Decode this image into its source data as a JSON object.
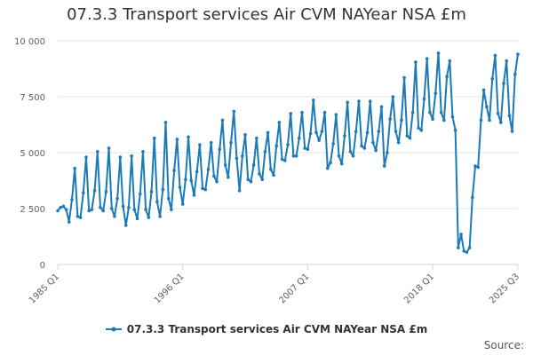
{
  "title": "07.3.3 Transport services Air CVM NAYear NSA £m",
  "source_label": "Source:",
  "chart_data": {
    "type": "line",
    "title": "07.3.3 Transport services Air CVM NAYear NSA £m",
    "xlabel": "",
    "ylabel": "",
    "ylim": [
      0,
      10000
    ],
    "yticks": [
      0,
      2500,
      5000,
      7500,
      10000
    ],
    "ytick_labels": [
      "0",
      "2 500",
      "5 000",
      "7 500",
      "10 000"
    ],
    "xtick_labels": [
      "1985 Q1",
      "1996 Q1",
      "2007 Q1",
      "2018 Q1",
      "2025 Q3"
    ],
    "xtick_index": [
      0,
      44,
      88,
      132,
      162
    ],
    "grid": true,
    "legend_position": "bottom",
    "color": "#1b7bb8",
    "series": [
      {
        "name": "07.3.3 Transport services Air CVM NAYear NSA £m",
        "x": [
          "1985 Q1",
          "1985 Q2",
          "1985 Q3",
          "1985 Q4",
          "1986 Q1",
          "1986 Q2",
          "1986 Q3",
          "1986 Q4",
          "1987 Q1",
          "1987 Q2",
          "1987 Q3",
          "1987 Q4",
          "1988 Q1",
          "1988 Q2",
          "1988 Q3",
          "1988 Q4",
          "1989 Q1",
          "1989 Q2",
          "1989 Q3",
          "1989 Q4",
          "1990 Q1",
          "1990 Q2",
          "1990 Q3",
          "1990 Q4",
          "1991 Q1",
          "1991 Q2",
          "1991 Q3",
          "1991 Q4",
          "1992 Q1",
          "1992 Q2",
          "1992 Q3",
          "1992 Q4",
          "1993 Q1",
          "1993 Q2",
          "1993 Q3",
          "1993 Q4",
          "1994 Q1",
          "1994 Q2",
          "1994 Q3",
          "1994 Q4",
          "1995 Q1",
          "1995 Q2",
          "1995 Q3",
          "1995 Q4",
          "1996 Q1",
          "1996 Q2",
          "1996 Q3",
          "1996 Q4",
          "1997 Q1",
          "1997 Q2",
          "1997 Q3",
          "1997 Q4",
          "1998 Q1",
          "1998 Q2",
          "1998 Q3",
          "1998 Q4",
          "1999 Q1",
          "1999 Q2",
          "1999 Q3",
          "1999 Q4",
          "2000 Q1",
          "2000 Q2",
          "2000 Q3",
          "2000 Q4",
          "2001 Q1",
          "2001 Q2",
          "2001 Q3",
          "2001 Q4",
          "2002 Q1",
          "2002 Q2",
          "2002 Q3",
          "2002 Q4",
          "2003 Q1",
          "2003 Q2",
          "2003 Q3",
          "2003 Q4",
          "2004 Q1",
          "2004 Q2",
          "2004 Q3",
          "2004 Q4",
          "2005 Q1",
          "2005 Q2",
          "2005 Q3",
          "2005 Q4",
          "2006 Q1",
          "2006 Q2",
          "2006 Q3",
          "2006 Q4",
          "2007 Q1",
          "2007 Q2",
          "2007 Q3",
          "2007 Q4",
          "2008 Q1",
          "2008 Q2",
          "2008 Q3",
          "2008 Q4",
          "2009 Q1",
          "2009 Q2",
          "2009 Q3",
          "2009 Q4",
          "2010 Q1",
          "2010 Q2",
          "2010 Q3",
          "2010 Q4",
          "2011 Q1",
          "2011 Q2",
          "2011 Q3",
          "2011 Q4",
          "2012 Q1",
          "2012 Q2",
          "2012 Q3",
          "2012 Q4",
          "2013 Q1",
          "2013 Q2",
          "2013 Q3",
          "2013 Q4",
          "2014 Q1",
          "2014 Q2",
          "2014 Q3",
          "2014 Q4",
          "2015 Q1",
          "2015 Q2",
          "2015 Q3",
          "2015 Q4",
          "2016 Q1",
          "2016 Q2",
          "2016 Q3",
          "2016 Q4",
          "2017 Q1",
          "2017 Q2",
          "2017 Q3",
          "2017 Q4",
          "2018 Q1",
          "2018 Q2",
          "2018 Q3",
          "2018 Q4",
          "2019 Q1",
          "2019 Q2",
          "2019 Q3",
          "2019 Q4",
          "2020 Q1",
          "2020 Q2",
          "2020 Q3",
          "2020 Q4",
          "2021 Q1",
          "2021 Q2",
          "2021 Q3",
          "2021 Q4",
          "2022 Q1",
          "2022 Q2",
          "2022 Q3",
          "2022 Q4",
          "2023 Q1",
          "2023 Q2",
          "2023 Q3",
          "2023 Q4",
          "2024 Q1",
          "2024 Q2",
          "2024 Q3",
          "2024 Q4",
          "2025 Q1",
          "2025 Q2",
          "2025 Q3"
        ],
        "values": [
          2400,
          2550,
          2600,
          2450,
          1900,
          2900,
          4300,
          2150,
          2100,
          3200,
          4800,
          2400,
          2450,
          3300,
          5050,
          2550,
          2400,
          3250,
          5200,
          2500,
          2150,
          2950,
          4800,
          2600,
          1750,
          2550,
          4850,
          2450,
          2050,
          3150,
          5050,
          2450,
          2100,
          3250,
          5650,
          2800,
          2150,
          3350,
          6350,
          2950,
          2450,
          4200,
          5600,
          3450,
          2700,
          3800,
          5700,
          3750,
          3100,
          4150,
          5350,
          3400,
          3350,
          4250,
          5450,
          3950,
          3700,
          5150,
          6450,
          4450,
          3900,
          5450,
          6850,
          4750,
          3300,
          4850,
          5800,
          3800,
          3700,
          4450,
          5650,
          4050,
          3800,
          5050,
          5900,
          4250,
          4000,
          5300,
          6350,
          4700,
          4650,
          5350,
          6750,
          4850,
          4850,
          5650,
          6800,
          5200,
          5150,
          5850,
          7350,
          5900,
          5550,
          5950,
          6800,
          4300,
          4550,
          5400,
          6700,
          4850,
          4500,
          5750,
          7250,
          5050,
          4850,
          5950,
          7300,
          5300,
          5200,
          5900,
          7300,
          5450,
          5100,
          5950,
          7050,
          4400,
          5000,
          6500,
          7500,
          5950,
          5450,
          6450,
          8350,
          5750,
          5650,
          6800,
          9050,
          6100,
          6000,
          7400,
          9200,
          6800,
          6500,
          7650,
          9450,
          6800,
          6450,
          8400,
          9100,
          6600,
          6000,
          750,
          1350,
          600,
          550,
          750,
          3000,
          4400,
          4350,
          6450,
          7800,
          7050,
          6450,
          8300,
          9350,
          6750,
          6350,
          8100,
          9100,
          6650,
          5950,
          8500,
          9400
        ]
      }
    ]
  }
}
